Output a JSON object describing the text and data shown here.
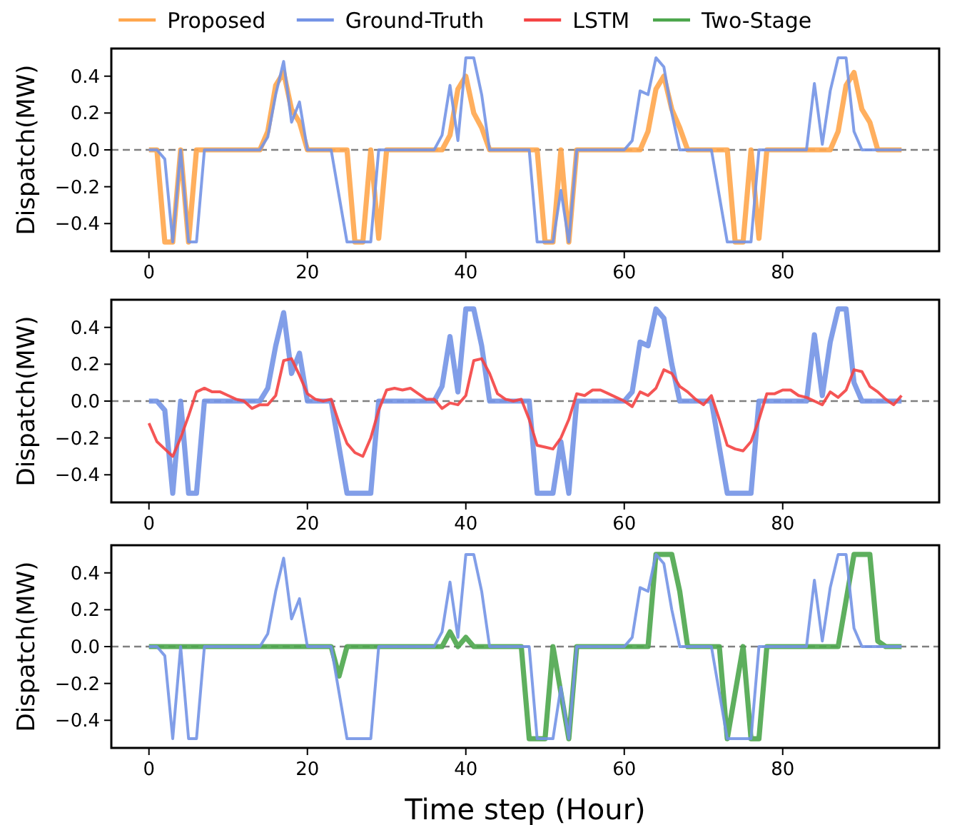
{
  "chart_data": [
    {
      "type": "line",
      "ylabel": "Dispatch(MW)",
      "legend": "top",
      "x": [
        0,
        1,
        2,
        3,
        4,
        5,
        6,
        7,
        8,
        9,
        10,
        11,
        12,
        13,
        14,
        15,
        16,
        17,
        18,
        19,
        20,
        21,
        22,
        23,
        24,
        25,
        26,
        27,
        28,
        29,
        30,
        31,
        32,
        33,
        34,
        35,
        36,
        37,
        38,
        39,
        40,
        41,
        42,
        43,
        44,
        45,
        46,
        47,
        48,
        49,
        50,
        51,
        52,
        53,
        54,
        55,
        56,
        57,
        58,
        59,
        60,
        61,
        62,
        63,
        64,
        65,
        66,
        67,
        68,
        69,
        70,
        71,
        72,
        73,
        74,
        75,
        76,
        77,
        78,
        79,
        80,
        81,
        82,
        83,
        84,
        85,
        86,
        87,
        88,
        89,
        90,
        91,
        92,
        93,
        94,
        95
      ],
      "xlim": [
        -4.75,
        99.75
      ],
      "xticks": [
        0,
        20,
        40,
        60,
        80
      ],
      "ylim": [
        -0.55,
        0.55
      ],
      "yticks": [
        {
          "value": -0.4,
          "label": "−0.4"
        },
        {
          "value": -0.2,
          "label": "−0.2"
        },
        {
          "value": 0,
          "label": "0.0"
        },
        {
          "value": 0.2,
          "label": "0.2"
        },
        {
          "value": 0.4,
          "label": "0.4"
        }
      ],
      "ref_lines": [
        {
          "axis": "y",
          "value": 0,
          "color": "#808080",
          "line_style": "dashed"
        }
      ],
      "series": [
        {
          "name": "Proposed",
          "color": "#ffa64d",
          "values": [
            0,
            0,
            -0.5,
            -0.5,
            0,
            -0.5,
            0,
            0,
            0,
            0,
            0,
            0,
            0,
            0,
            0,
            0.1,
            0.35,
            0.42,
            0.22,
            0.15,
            0,
            0,
            0,
            0,
            0,
            0,
            -0.5,
            -0.5,
            0,
            -0.48,
            0,
            0,
            0,
            0,
            0,
            0,
            0,
            0,
            0.08,
            0.33,
            0.4,
            0.2,
            0.12,
            0,
            0,
            0,
            0,
            0,
            0,
            0,
            -0.5,
            -0.5,
            0,
            -0.5,
            0,
            0,
            0,
            0,
            0,
            0,
            0,
            0,
            0,
            0.1,
            0.33,
            0.4,
            0.22,
            0.12,
            0,
            0,
            0,
            0,
            0,
            0,
            -0.5,
            -0.5,
            0,
            -0.48,
            0,
            0,
            0,
            0,
            0,
            0,
            0,
            0,
            0,
            0.1,
            0.35,
            0.42,
            0.22,
            0.15,
            0,
            0,
            0,
            0
          ]
        },
        {
          "name": "Ground-Truth",
          "color": "#7393e6",
          "values": [
            0,
            0,
            -0.05,
            -0.5,
            0,
            -0.5,
            -0.5,
            0,
            0,
            0,
            0,
            0,
            0,
            0,
            0,
            0.07,
            0.3,
            0.48,
            0.15,
            0.26,
            0,
            0,
            0,
            0,
            -0.25,
            -0.5,
            -0.5,
            -0.5,
            -0.5,
            0,
            0,
            0,
            0,
            0,
            0,
            0,
            0,
            0.08,
            0.35,
            0.05,
            0.5,
            0.5,
            0.3,
            0,
            0,
            0,
            0,
            0,
            0,
            -0.5,
            -0.5,
            -0.5,
            -0.22,
            -0.5,
            0,
            0,
            0,
            0,
            0,
            0,
            0,
            0.05,
            0.32,
            0.3,
            0.5,
            0.45,
            0.2,
            0,
            0,
            0,
            0,
            0,
            -0.25,
            -0.5,
            -0.5,
            -0.5,
            -0.5,
            0,
            0,
            0,
            0,
            0,
            0,
            0,
            0.36,
            0.03,
            0.32,
            0.5,
            0.5,
            0.1,
            0,
            0,
            0,
            0,
            0,
            0
          ]
        }
      ]
    },
    {
      "type": "line",
      "ylabel": "Dispatch(MW)",
      "x": [
        0,
        1,
        2,
        3,
        4,
        5,
        6,
        7,
        8,
        9,
        10,
        11,
        12,
        13,
        14,
        15,
        16,
        17,
        18,
        19,
        20,
        21,
        22,
        23,
        24,
        25,
        26,
        27,
        28,
        29,
        30,
        31,
        32,
        33,
        34,
        35,
        36,
        37,
        38,
        39,
        40,
        41,
        42,
        43,
        44,
        45,
        46,
        47,
        48,
        49,
        50,
        51,
        52,
        53,
        54,
        55,
        56,
        57,
        58,
        59,
        60,
        61,
        62,
        63,
        64,
        65,
        66,
        67,
        68,
        69,
        70,
        71,
        72,
        73,
        74,
        75,
        76,
        77,
        78,
        79,
        80,
        81,
        82,
        83,
        84,
        85,
        86,
        87,
        88,
        89,
        90,
        91,
        92,
        93,
        94,
        95
      ],
      "xlim": [
        -4.75,
        99.75
      ],
      "xticks": [
        0,
        20,
        40,
        60,
        80
      ],
      "ylim": [
        -0.55,
        0.55
      ],
      "yticks": [
        {
          "value": -0.4,
          "label": "−0.4"
        },
        {
          "value": -0.2,
          "label": "−0.2"
        },
        {
          "value": 0,
          "label": "0.0"
        },
        {
          "value": 0.2,
          "label": "0.2"
        },
        {
          "value": 0.4,
          "label": "0.4"
        }
      ],
      "ref_lines": [
        {
          "axis": "y",
          "value": 0,
          "color": "#808080",
          "line_style": "dashed"
        }
      ],
      "series": [
        {
          "color": "#7393e6",
          "values": [
            0,
            0,
            -0.05,
            -0.5,
            0,
            -0.5,
            -0.5,
            0,
            0,
            0,
            0,
            0,
            0,
            0,
            0,
            0.07,
            0.3,
            0.48,
            0.15,
            0.26,
            0,
            0,
            0,
            0,
            -0.25,
            -0.5,
            -0.5,
            -0.5,
            -0.5,
            0,
            0,
            0,
            0,
            0,
            0,
            0,
            0,
            0.08,
            0.35,
            0.05,
            0.5,
            0.5,
            0.3,
            0,
            0,
            0,
            0,
            0,
            0,
            -0.5,
            -0.5,
            -0.5,
            -0.22,
            -0.5,
            0,
            0,
            0,
            0,
            0,
            0,
            0,
            0.05,
            0.32,
            0.3,
            0.5,
            0.45,
            0.2,
            0,
            0,
            0,
            0,
            0,
            -0.25,
            -0.5,
            -0.5,
            -0.5,
            -0.5,
            0,
            0,
            0,
            0,
            0,
            0,
            0,
            0.36,
            0.03,
            0.32,
            0.5,
            0.5,
            0.1,
            0,
            0,
            0,
            0,
            0,
            0
          ]
        },
        {
          "name": "LSTM",
          "color": "#f44343",
          "values": [
            -0.12,
            -0.22,
            -0.26,
            -0.3,
            -0.2,
            -0.08,
            0.05,
            0.07,
            0.05,
            0.05,
            0.03,
            0.01,
            0,
            -0.04,
            -0.02,
            -0.02,
            0.03,
            0.22,
            0.23,
            0.14,
            0.04,
            0.01,
            0,
            0.01,
            -0.12,
            -0.23,
            -0.28,
            -0.3,
            -0.2,
            -0.05,
            0.06,
            0.07,
            0.06,
            0.07,
            0.04,
            0.01,
            0.01,
            -0.04,
            -0.01,
            -0.02,
            0.03,
            0.22,
            0.23,
            0.15,
            0.04,
            0.01,
            0,
            0.01,
            -0.1,
            -0.24,
            -0.25,
            -0.26,
            -0.2,
            -0.1,
            0.04,
            0.03,
            0.06,
            0.06,
            0.04,
            0.02,
            0,
            -0.03,
            0.05,
            0.03,
            0.07,
            0.17,
            0.15,
            0.08,
            0.05,
            0.01,
            -0.02,
            0.03,
            -0.1,
            -0.24,
            -0.26,
            -0.27,
            -0.22,
            -0.1,
            0.04,
            0.04,
            0.06,
            0.06,
            0.03,
            0.02,
            0,
            -0.02,
            0.05,
            0.02,
            0.06,
            0.17,
            0.16,
            0.08,
            0.05,
            0.01,
            -0.02,
            0.03
          ]
        }
      ]
    },
    {
      "type": "line",
      "xlabel": "Time step (Hour)",
      "ylabel": "Dispatch(MW)",
      "x": [
        0,
        1,
        2,
        3,
        4,
        5,
        6,
        7,
        8,
        9,
        10,
        11,
        12,
        13,
        14,
        15,
        16,
        17,
        18,
        19,
        20,
        21,
        22,
        23,
        24,
        25,
        26,
        27,
        28,
        29,
        30,
        31,
        32,
        33,
        34,
        35,
        36,
        37,
        38,
        39,
        40,
        41,
        42,
        43,
        44,
        45,
        46,
        47,
        48,
        49,
        50,
        51,
        52,
        53,
        54,
        55,
        56,
        57,
        58,
        59,
        60,
        61,
        62,
        63,
        64,
        65,
        66,
        67,
        68,
        69,
        70,
        71,
        72,
        73,
        74,
        75,
        76,
        77,
        78,
        79,
        80,
        81,
        82,
        83,
        84,
        85,
        86,
        87,
        88,
        89,
        90,
        91,
        92,
        93,
        94,
        95
      ],
      "xlim": [
        -4.75,
        99.75
      ],
      "xticks": [
        0,
        20,
        40,
        60,
        80
      ],
      "ylim": [
        -0.55,
        0.55
      ],
      "yticks": [
        {
          "value": -0.4,
          "label": "−0.4"
        },
        {
          "value": -0.2,
          "label": "−0.2"
        },
        {
          "value": 0,
          "label": "0.0"
        },
        {
          "value": 0.2,
          "label": "0.2"
        },
        {
          "value": 0.4,
          "label": "0.4"
        }
      ],
      "ref_lines": [
        {
          "axis": "y",
          "value": 0,
          "color": "#808080",
          "line_style": "dashed"
        }
      ],
      "series": [
        {
          "name": "Two-Stage",
          "color": "#4ca64c",
          "values": [
            0,
            0,
            0,
            0,
            0,
            0,
            0,
            0,
            0,
            0,
            0,
            0,
            0,
            0,
            0,
            0,
            0,
            0,
            0,
            0,
            0,
            0,
            0,
            0,
            -0.16,
            0,
            0,
            0,
            0,
            0,
            0,
            0,
            0,
            0,
            0,
            0,
            0,
            0,
            0.08,
            0,
            0.05,
            0,
            0,
            0,
            0,
            0,
            0,
            0,
            -0.5,
            -0.5,
            -0.5,
            0,
            -0.25,
            -0.5,
            0,
            0,
            0,
            0,
            0,
            0,
            0,
            0,
            0,
            0,
            0.5,
            0.5,
            0.5,
            0.3,
            0,
            0,
            0,
            0,
            0,
            -0.5,
            -0.25,
            0,
            -0.5,
            -0.5,
            0,
            0,
            0,
            0,
            0,
            0,
            0,
            0,
            0,
            0,
            0.25,
            0.5,
            0.5,
            0.5,
            0.03,
            0,
            0,
            0
          ]
        },
        {
          "color": "#7393e6",
          "values": [
            0,
            0,
            -0.05,
            -0.5,
            0,
            -0.5,
            -0.5,
            0,
            0,
            0,
            0,
            0,
            0,
            0,
            0,
            0.07,
            0.3,
            0.48,
            0.15,
            0.26,
            0,
            0,
            0,
            0,
            -0.25,
            -0.5,
            -0.5,
            -0.5,
            -0.5,
            0,
            0,
            0,
            0,
            0,
            0,
            0,
            0,
            0.08,
            0.35,
            0.05,
            0.5,
            0.5,
            0.3,
            0,
            0,
            0,
            0,
            0,
            0,
            -0.5,
            -0.5,
            -0.5,
            -0.22,
            -0.5,
            0,
            0,
            0,
            0,
            0,
            0,
            0,
            0.05,
            0.32,
            0.3,
            0.5,
            0.45,
            0.2,
            0,
            0,
            0,
            0,
            0,
            -0.25,
            -0.5,
            -0.5,
            -0.5,
            -0.5,
            0,
            0,
            0,
            0,
            0,
            0,
            0,
            0.36,
            0.03,
            0.32,
            0.5,
            0.5,
            0.1,
            0,
            0,
            0,
            0,
            0,
            0
          ]
        }
      ]
    }
  ]
}
